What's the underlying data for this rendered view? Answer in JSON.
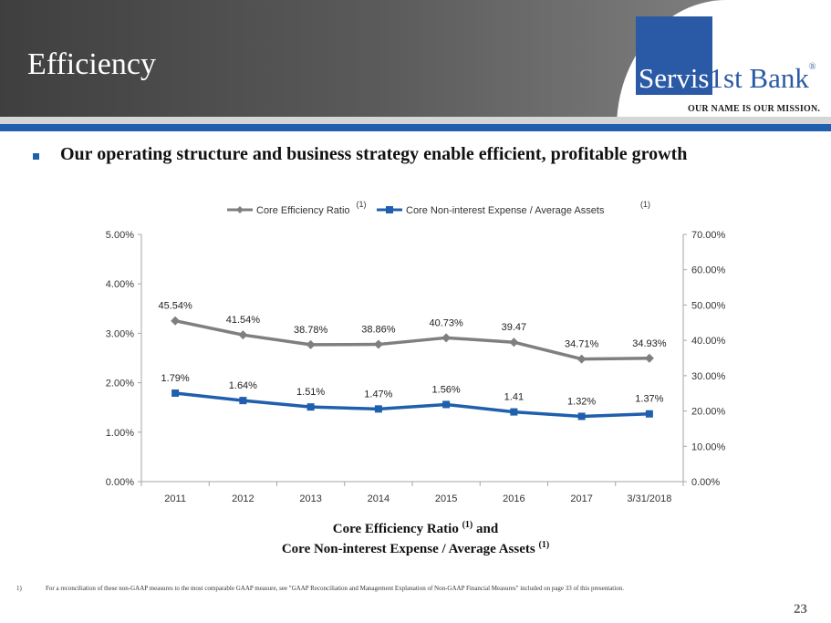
{
  "header": {
    "title": "Efficiency"
  },
  "logo": {
    "name_part1": "Servis",
    "name_part2": "1st Bank",
    "registered": "®",
    "tagline": "OUR NAME IS OUR MISSION."
  },
  "headline": "Our operating structure and business strategy enable efficient, profitable growth",
  "colors": {
    "efficiency": "#7f7f7f",
    "expense": "#1f5fad",
    "brand_blue": "#2a5aa6"
  },
  "chart_data": {
    "type": "line",
    "categories": [
      "2011",
      "2012",
      "2013",
      "2014",
      "2015",
      "2016",
      "2017",
      "3/31/2018"
    ],
    "y_left": {
      "ticks": [
        "0.00%",
        "1.00%",
        "2.00%",
        "3.00%",
        "4.00%",
        "5.00%"
      ],
      "min": 0,
      "max": 5
    },
    "y_right": {
      "ticks": [
        "0.00%",
        "10.00%",
        "20.00%",
        "30.00%",
        "40.00%",
        "50.00%",
        "60.00%",
        "70.00%"
      ],
      "min": 0,
      "max": 70
    },
    "legend_position": "top",
    "series": [
      {
        "name": "Core Efficiency Ratio",
        "note": "(1)",
        "axis": "right",
        "values": [
          45.54,
          41.54,
          38.78,
          38.86,
          40.73,
          39.47,
          34.71,
          34.93
        ],
        "labels": [
          "45.54%",
          "41.54%",
          "38.78%",
          "38.86%",
          "40.73%",
          "39.47",
          "34.71%",
          "34.93%"
        ]
      },
      {
        "name": "Core Non-interest Expense / Average Assets",
        "note": "(1)",
        "axis": "left",
        "values": [
          1.79,
          1.64,
          1.51,
          1.47,
          1.56,
          1.41,
          1.32,
          1.37
        ],
        "labels": [
          "1.79%",
          "1.64%",
          "1.51%",
          "1.47%",
          "1.56%",
          "1.41",
          "1.32%",
          "1.37%"
        ]
      }
    ]
  },
  "caption": {
    "line1": "Core Efficiency Ratio",
    "line1_after": "and",
    "line2": "Core Non-interest Expense / Average Assets",
    "note": "(1)"
  },
  "footnote": {
    "number": "1)",
    "text": "For a reconciliation of these non-GAAP measures to the most comparable GAAP measure, see \"GAAP Reconciliation and Management Explanation of Non-GAAP Financial Measures\" included on page 33 of this presentation."
  },
  "page_number": "23"
}
